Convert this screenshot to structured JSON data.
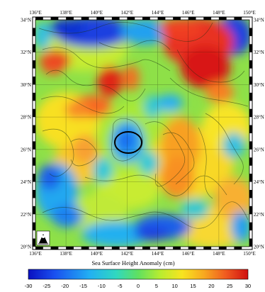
{
  "map": {
    "lon_labels": [
      "136°E",
      "138°E",
      "140°E",
      "142°E",
      "144°E",
      "146°E",
      "148°E",
      "150°E"
    ],
    "lat_labels": [
      "34°N",
      "32°N",
      "30°N",
      "28°N",
      "26°N",
      "24°N",
      "22°N",
      "20°N"
    ],
    "lon_range": [
      136,
      150
    ],
    "lat_range": [
      20,
      34
    ],
    "grid": true,
    "highlight": {
      "shape": "ellipse",
      "center_lon": 142.1,
      "center_lat": 26.8
    }
  },
  "colorbar": {
    "title": "Sea Surface Height Anomaly (cm)",
    "ticks": [
      "-30",
      "-25",
      "-20",
      "-15",
      "-10",
      "-5",
      "0",
      "5",
      "10",
      "15",
      "20",
      "25",
      "30"
    ],
    "range": [
      -30,
      30
    ],
    "colors": [
      "#1020c8",
      "#1a6af0",
      "#24b8f0",
      "#3cd8a0",
      "#70e040",
      "#c8ec30",
      "#f8e020",
      "#f8a020",
      "#f05020",
      "#d01818"
    ]
  },
  "icons": [
    "noaa-logo-icon"
  ]
}
